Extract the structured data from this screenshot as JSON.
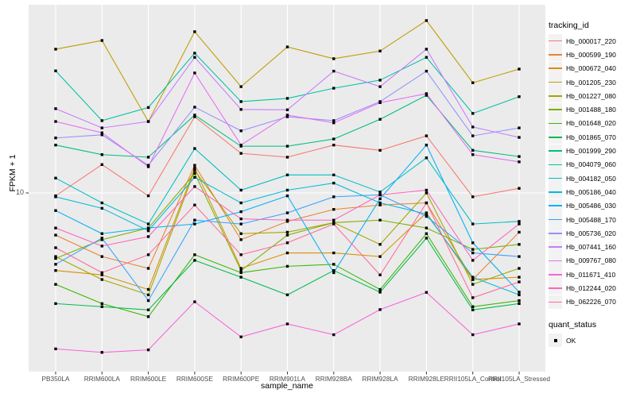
{
  "axes": {
    "x_title": "sample_name",
    "y_title": "FPKM + 1",
    "y_tick_label": "10"
  },
  "legend": {
    "tracking_title": "tracking_id",
    "quant_title": "quant_status",
    "quant_items": [
      {
        "label": "OK",
        "marker": "black-square"
      }
    ]
  },
  "chart_data": {
    "type": "line",
    "title": "",
    "xlabel": "sample_name",
    "ylabel": "FPKM + 1",
    "y_scale": "log10",
    "y_ticks": [
      10
    ],
    "ylim": [
      1.5,
      73
    ],
    "grid": true,
    "legend_position": "right",
    "marker": "square",
    "x_categories": [
      "PB350LA",
      "RRIM600LA",
      "RRIM600LE",
      "RRIM600SE",
      "RRIM600PE",
      "RRIM901LA",
      "RRIM928BA",
      "RRIM928LA",
      "RRIM928LE",
      "RRII105LA_Control",
      "RRII105LA_Stressed"
    ],
    "series": [
      {
        "name": "Hb_000017_220",
        "color": "#F8766D",
        "values": [
          9.7,
          13.5,
          9.7,
          22.4,
          15.2,
          14.6,
          16.6,
          15.7,
          18.3,
          9.6,
          10.5
        ]
      },
      {
        "name": "Hb_000599_190",
        "color": "#EA8331",
        "values": [
          6.4,
          5.1,
          4.5,
          13.4,
          6.1,
          7.4,
          8.4,
          8.8,
          9.0,
          4.0,
          6.6
        ]
      },
      {
        "name": "Hb_000672_040",
        "color": "#D89000",
        "values": [
          4.4,
          4.2,
          3.6,
          13.0,
          4.5,
          5.3,
          5.3,
          5.1,
          8.1,
          4.0,
          4.1
        ]
      },
      {
        "name": "Hb_001205_230",
        "color": "#C09B00",
        "values": [
          45.8,
          50.2,
          21.3,
          55.1,
          30.8,
          46.9,
          41.4,
          44.9,
          62.0,
          32.1,
          37.1
        ]
      },
      {
        "name": "Hb_001227_080",
        "color": "#A3A500",
        "values": [
          5.1,
          4.0,
          3.4,
          12.7,
          6.5,
          6.6,
          7.3,
          5.8,
          10.0,
          3.8,
          4.5
        ]
      },
      {
        "name": "Hb_001488_180",
        "color": "#7CAE00",
        "values": [
          5.0,
          6.1,
          6.9,
          12.3,
          4.4,
          6.4,
          7.3,
          7.5,
          6.9,
          5.5,
          5.8
        ]
      },
      {
        "name": "Hb_001648_020",
        "color": "#39B600",
        "values": [
          3.8,
          3.1,
          2.7,
          5.2,
          4.3,
          4.6,
          4.7,
          3.6,
          6.5,
          3.0,
          3.2
        ]
      },
      {
        "name": "Hb_001865_070",
        "color": "#00BB4E",
        "values": [
          3.1,
          3.0,
          2.9,
          4.9,
          4.1,
          3.4,
          4.4,
          3.5,
          6.2,
          2.9,
          3.1
        ]
      },
      {
        "name": "Hb_001999_290",
        "color": "#00BF7D",
        "values": [
          16.6,
          15.0,
          14.6,
          22.8,
          16.4,
          16.4,
          17.7,
          21.8,
          28.1,
          15.7,
          14.7
        ]
      },
      {
        "name": "Hb_004079_060",
        "color": "#00C1A3",
        "values": [
          36.4,
          21.5,
          24.7,
          43.9,
          26.3,
          27.2,
          30.3,
          33.0,
          42.0,
          23.2,
          27.7
        ]
      },
      {
        "name": "Hb_004182_050",
        "color": "#00BFC4",
        "values": [
          11.7,
          9.0,
          7.2,
          16.0,
          10.3,
          12.1,
          12.1,
          10.1,
          14.5,
          7.2,
          7.4
        ]
      },
      {
        "name": "Hb_005186_040",
        "color": "#00BADE",
        "values": [
          9.6,
          8.5,
          6.7,
          11.8,
          9.0,
          10.3,
          11.1,
          9.0,
          8.0,
          4.1,
          3.4
        ]
      },
      {
        "name": "Hb_005486_030",
        "color": "#00B0F6",
        "values": [
          8.3,
          6.5,
          6.9,
          7.2,
          8.2,
          9.7,
          4.3,
          9.4,
          16.6,
          5.9,
          3.5
        ]
      },
      {
        "name": "Hb_005488_170",
        "color": "#35A2FF",
        "values": [
          4.7,
          6.2,
          3.2,
          7.5,
          7.2,
          8.1,
          9.6,
          9.8,
          7.8,
          5.3,
          5.1
        ]
      },
      {
        "name": "Hb_005736_020",
        "color": "#9590FF",
        "values": [
          17.9,
          18.5,
          13.4,
          24.8,
          19.3,
          22.4,
          21.5,
          26.3,
          36.3,
          18.3,
          19.9
        ]
      },
      {
        "name": "Hb_007441_160",
        "color": "#C77CFF",
        "values": [
          24.4,
          19.9,
          21.3,
          42.0,
          24.2,
          24.1,
          36.3,
          30.8,
          45.8,
          20.1,
          18.0
        ]
      },
      {
        "name": "Hb_009767_080",
        "color": "#E76BF3",
        "values": [
          21.3,
          18.9,
          13.2,
          35.6,
          16.6,
          22.8,
          21.0,
          26.0,
          28.6,
          15.0,
          13.9
        ]
      },
      {
        "name": "Hb_011671_410",
        "color": "#FA62DB",
        "values": [
          1.92,
          1.85,
          1.9,
          3.16,
          2.18,
          2.5,
          2.23,
          2.91,
          3.49,
          2.23,
          2.5
        ]
      },
      {
        "name": "Hb_012244_020",
        "color": "#FF62BC",
        "values": [
          6.9,
          5.7,
          6.3,
          10.7,
          7.6,
          7.5,
          7.5,
          9.8,
          10.3,
          4.9,
          7.2
        ]
      },
      {
        "name": "Hb_062226_070",
        "color": "#FF6A9A",
        "values": [
          5.6,
          4.3,
          5.2,
          8.8,
          5.2,
          5.9,
          7.2,
          4.2,
          9.0,
          3.3,
          3.9
        ]
      }
    ]
  }
}
